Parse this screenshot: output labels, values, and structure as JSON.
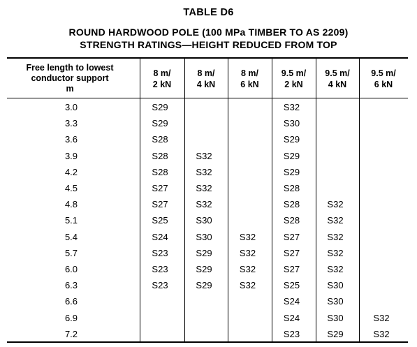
{
  "table_number": "TABLE   D6",
  "title_line1": "ROUND HARDWOOD POLE (100 MPa TIMBER TO AS 2209)",
  "title_line2": "STRENGTH RATINGS—HEIGHT REDUCED FROM TOP",
  "first_column_header": [
    "Free length to lowest",
    "conductor support",
    "m"
  ],
  "column_headers": [
    [
      "8 m/",
      "2 kN"
    ],
    [
      "8 m/",
      "4 kN"
    ],
    [
      "8 m/",
      "6 kN"
    ],
    [
      "9.5 m/",
      "2 kN"
    ],
    [
      "9.5 m/",
      "4 kN"
    ],
    [
      "9.5 m/",
      "6 kN"
    ]
  ],
  "rows": [
    {
      "length": "3.0",
      "values": [
        "S29",
        "",
        "",
        "S32",
        "",
        ""
      ]
    },
    {
      "length": "3.3",
      "values": [
        "S29",
        "",
        "",
        "S30",
        "",
        ""
      ]
    },
    {
      "length": "3.6",
      "values": [
        "S28",
        "",
        "",
        "S29",
        "",
        ""
      ]
    },
    {
      "length": "3.9",
      "values": [
        "S28",
        "S32",
        "",
        "S29",
        "",
        ""
      ]
    },
    {
      "length": "4.2",
      "values": [
        "S28",
        "S32",
        "",
        "S29",
        "",
        ""
      ]
    },
    {
      "length": "4.5",
      "values": [
        "S27",
        "S32",
        "",
        "S28",
        "",
        ""
      ]
    },
    {
      "length": "4.8",
      "values": [
        "S27",
        "S32",
        "",
        "S28",
        "S32",
        ""
      ]
    },
    {
      "length": "5.1",
      "values": [
        "S25",
        "S30",
        "",
        "S28",
        "S32",
        ""
      ]
    },
    {
      "length": "5.4",
      "values": [
        "S24",
        "S30",
        "S32",
        "S27",
        "S32",
        ""
      ]
    },
    {
      "length": "5.7",
      "values": [
        "S23",
        "S29",
        "S32",
        "S27",
        "S32",
        ""
      ]
    },
    {
      "length": "6.0",
      "values": [
        "S23",
        "S29",
        "S32",
        "S27",
        "S32",
        ""
      ]
    },
    {
      "length": "6.3",
      "values": [
        "S23",
        "S29",
        "S32",
        "S25",
        "S30",
        ""
      ]
    },
    {
      "length": "6.6",
      "values": [
        "",
        "",
        "",
        "S24",
        "S30",
        ""
      ]
    },
    {
      "length": "6.9",
      "values": [
        "",
        "",
        "",
        "S24",
        "S30",
        "S32"
      ]
    },
    {
      "length": "7.2",
      "values": [
        "",
        "",
        "",
        "S23",
        "S29",
        "S32"
      ]
    }
  ]
}
